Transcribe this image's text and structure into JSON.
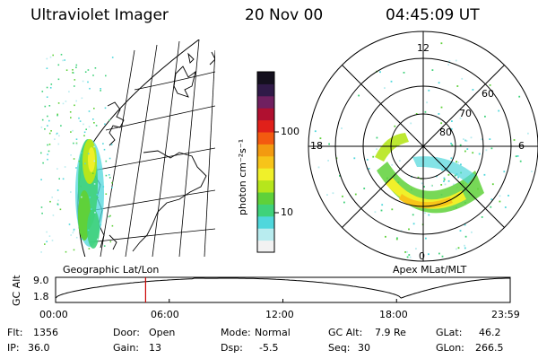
{
  "header": {
    "instrument": "Ultraviolet Imager",
    "date": "20 Nov 00",
    "time": "04:45:09 UT"
  },
  "colorbar": {
    "unit_label": "photon cm⁻²s⁻¹",
    "ticks": [
      "100",
      "10"
    ],
    "colors": [
      "#f2f2f2",
      "#b8ecef",
      "#4fd7dc",
      "#3fd27a",
      "#5fd13a",
      "#b6e61c",
      "#f0f02a",
      "#f7c419",
      "#f39a10",
      "#f35a10",
      "#e0201a",
      "#b01030",
      "#702060",
      "#301a48",
      "#14101e"
    ]
  },
  "left_panel": {
    "label": "Geographic Lat/Lon"
  },
  "right_panel": {
    "label": "Apex MLat/MLT",
    "mlt_labels": {
      "top": "12",
      "left": "18",
      "right": "6",
      "bottom": "0"
    },
    "mlat_labels": [
      "60",
      "70",
      "80"
    ]
  },
  "altitude_plot": {
    "ylabel": "GC Alt",
    "yticks": [
      "9.0",
      "1.8"
    ],
    "xticks": [
      "00:00",
      "06:00",
      "12:00",
      "18:00",
      "23:59"
    ],
    "cursor_time_frac": 0.198,
    "cursor_color": "#cc0000"
  },
  "status": {
    "row1": {
      "flt_label": "Flt:",
      "flt_value": "1356",
      "door_label": "Door:",
      "door_value": "Open",
      "mode_label": "Mode:",
      "mode_value": "Normal",
      "gcalt_label": "GC Alt:",
      "gcalt_value": "7.9 Re",
      "glat_label": "GLat:",
      "glat_value": "46.2"
    },
    "row2": {
      "ip_label": "IP:",
      "ip_value": "36.0",
      "gain_label": "Gain:",
      "gain_value": "13",
      "dsp_label": "Dsp:",
      "dsp_value": "-5.5",
      "seq_label": "Seq:",
      "seq_value": "30",
      "glon_label": "GLon:",
      "glon_value": "266.5"
    }
  }
}
